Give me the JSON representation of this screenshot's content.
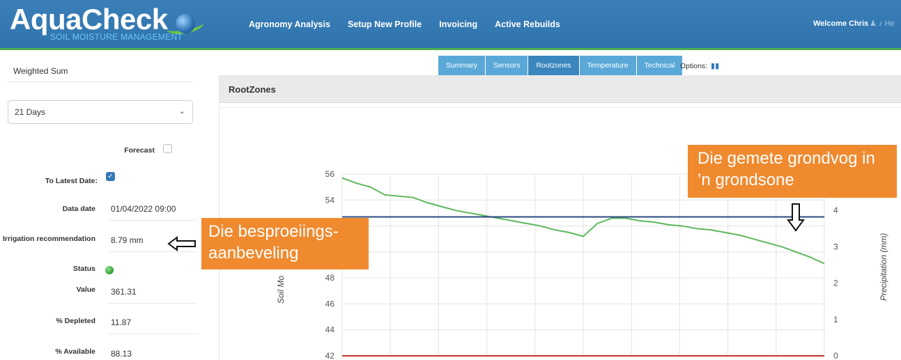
{
  "header": {
    "logo_text": "AquaCheck",
    "logo_tagline": "SOIL MOISTURE MANAGEMENT",
    "nav": [
      "Agronomy Analysis",
      "Setup New Profile",
      "Invoicing",
      "Active Rebuilds"
    ],
    "welcome": "Welcome Chris",
    "user_icons": "♟ ♪ He"
  },
  "sidebar": {
    "calc_mode": "Weighted Sum",
    "range_select": "21 Days",
    "forecast_label": "Forecast",
    "forecast_checked": false,
    "latest_label": "To Latest Date:",
    "latest_checked": true,
    "data_date_label": "Data date",
    "data_date_value": "01/04/2022 09:00",
    "irrigation_label": "Irrigation recommendation",
    "irrigation_value": "8.79 mm",
    "status_label": "Status",
    "status_color": "#2e9b2e",
    "value_label": "Value",
    "value_value": "361.31",
    "depleted_label": "% Depleted",
    "depleted_value": "11.87",
    "available_label": "% Available",
    "available_value": "88.13"
  },
  "tabs": {
    "items": [
      "Summary",
      "Sensors",
      "Rootzones",
      "Temperature",
      "Technical"
    ],
    "active": "Rootzones",
    "options_label": "Options:"
  },
  "chart_panel": {
    "title": "RootZones"
  },
  "chart_data": {
    "type": "line",
    "ylabel": "Soil Mo",
    "y2label": "Precipitation (mm)",
    "ylim": [
      42,
      56
    ],
    "yticks": [
      42,
      44,
      46,
      48,
      54,
      56
    ],
    "y2lim": [
      0,
      5
    ],
    "y2ticks": [
      0,
      1,
      2,
      3,
      4
    ],
    "grid": true,
    "series": [
      {
        "color": "#5cb85c",
        "x": [
          0,
          1,
          2,
          3,
          4,
          5,
          6,
          7,
          8,
          9,
          10,
          11,
          12,
          13,
          14,
          15,
          16,
          17,
          18,
          19,
          20,
          21,
          22,
          23,
          24,
          25,
          26,
          27,
          28,
          29,
          30,
          31,
          32,
          33,
          34
        ],
        "values": [
          55.7,
          55.3,
          55.0,
          54.4,
          54.3,
          54.2,
          53.8,
          53.5,
          53.2,
          53.0,
          52.8,
          52.6,
          52.4,
          52.2,
          52.0,
          51.7,
          51.5,
          51.2,
          52.2,
          52.6,
          52.6,
          52.4,
          52.3,
          52.1,
          52.0,
          51.8,
          51.7,
          51.5,
          51.3,
          51.0,
          50.7,
          50.4,
          50.0,
          49.6,
          49.1
        ]
      },
      {
        "color": "#2a4a7f",
        "x": [
          0,
          34
        ],
        "values": [
          52.7,
          52.7
        ]
      },
      {
        "color": "#c0392b",
        "x": [
          0,
          34
        ],
        "values": [
          42,
          42
        ]
      }
    ]
  },
  "annotations": {
    "irrigation_callout": "Die besproeiings-aanbeveling",
    "moisture_callout": "Die gemete grondvog in ’n grondsone"
  }
}
